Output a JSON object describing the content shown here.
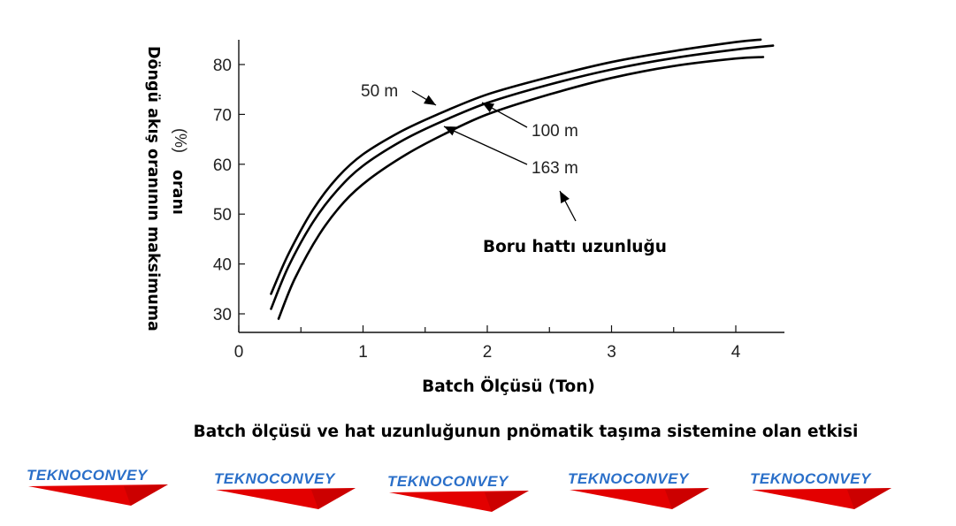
{
  "chart_data": {
    "type": "line",
    "ylabel_lines": [
      "Döngü akış oranının maksimuma",
      "oranı"
    ],
    "ylabel_unit": "(%)",
    "xlabel": "Batch Ölçüsü (Ton)",
    "xlim": [
      0,
      4.4
    ],
    "ylim": [
      26,
      88
    ],
    "x_ticks": [
      0,
      1,
      2,
      3,
      4
    ],
    "x_minor_ticks": [
      0.5,
      1.5,
      2.5,
      3.5
    ],
    "y_ticks": [
      30,
      40,
      50,
      60,
      70,
      80
    ],
    "grid": false,
    "annotation": "Boru hattı uzunluğu",
    "series": [
      {
        "name": "50 m",
        "x": [
          0.26,
          0.4,
          0.6,
          0.8,
          1.0,
          1.3,
          1.6,
          2.0,
          2.5,
          3.0,
          3.5,
          4.0,
          4.2
        ],
        "y": [
          34,
          42,
          51,
          57.5,
          62,
          66.5,
          70,
          74,
          77.5,
          80.5,
          82.7,
          84.5,
          85
        ]
      },
      {
        "name": "100 m",
        "x": [
          0.26,
          0.4,
          0.6,
          0.8,
          1.0,
          1.3,
          1.6,
          2.0,
          2.5,
          3.0,
          3.5,
          4.0,
          4.3
        ],
        "y": [
          31,
          39.5,
          48.5,
          55,
          59.7,
          64.5,
          68.2,
          72.3,
          76,
          79,
          81.3,
          83,
          83.8
        ]
      },
      {
        "name": "163 m",
        "x": [
          0.32,
          0.45,
          0.65,
          0.85,
          1.05,
          1.35,
          1.65,
          2.0,
          2.5,
          3.0,
          3.5,
          4.0,
          4.22
        ],
        "y": [
          29,
          37,
          46,
          52.5,
          57,
          62,
          66,
          70,
          74,
          77.3,
          79.7,
          81.2,
          81.5
        ]
      }
    ]
  },
  "caption": "Batch ölçüsü ve hat uzunluğunun pnömatik taşıma sistemine olan etkisi",
  "logos": [
    {
      "text": "TEKNOCONVEY"
    },
    {
      "text": "TEKNOCONVEY"
    },
    {
      "text": "TEKNOCONVEY"
    },
    {
      "text": "TEKNOCONVEY"
    },
    {
      "text": "TEKNOCONVEY"
    }
  ],
  "colors": {
    "curve": "#000000",
    "axis": "#111111",
    "logo_text": "#2a6fc9",
    "logo_swoosh": "#e30000"
  }
}
